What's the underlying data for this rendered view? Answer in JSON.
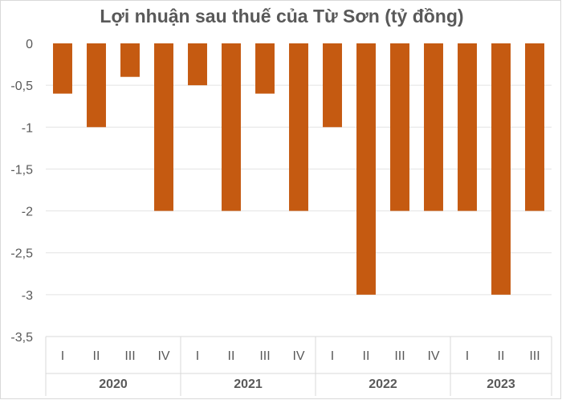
{
  "chart_data": {
    "type": "bar",
    "title": "Lợi nhuận sau thuế của Từ Sơn (tỷ đồng)",
    "xlabel": "",
    "ylabel": "",
    "ylim": [
      -3.5,
      0
    ],
    "yticks": [
      0,
      -0.5,
      -1,
      -1.5,
      -2,
      -2.5,
      -3,
      -3.5
    ],
    "ytick_labels": [
      "0",
      "-0,5",
      "-1",
      "-1,5",
      "-2",
      "-2,5",
      "-3",
      "-3,5"
    ],
    "grid": true,
    "legend": "none",
    "bar_color": "#c55a11",
    "categories": [
      "I",
      "II",
      "III",
      "IV",
      "I",
      "II",
      "III",
      "IV",
      "I",
      "II",
      "III",
      "IV",
      "I",
      "II",
      "III"
    ],
    "groups": [
      {
        "label": "2020",
        "count": 4
      },
      {
        "label": "2021",
        "count": 4
      },
      {
        "label": "2022",
        "count": 4
      },
      {
        "label": "2023",
        "count": 3
      }
    ],
    "values": [
      -0.6,
      -1,
      -0.4,
      -2,
      -0.5,
      -2,
      -0.6,
      -2,
      -1,
      -3,
      -2,
      -2,
      -2,
      -3,
      -2
    ]
  }
}
